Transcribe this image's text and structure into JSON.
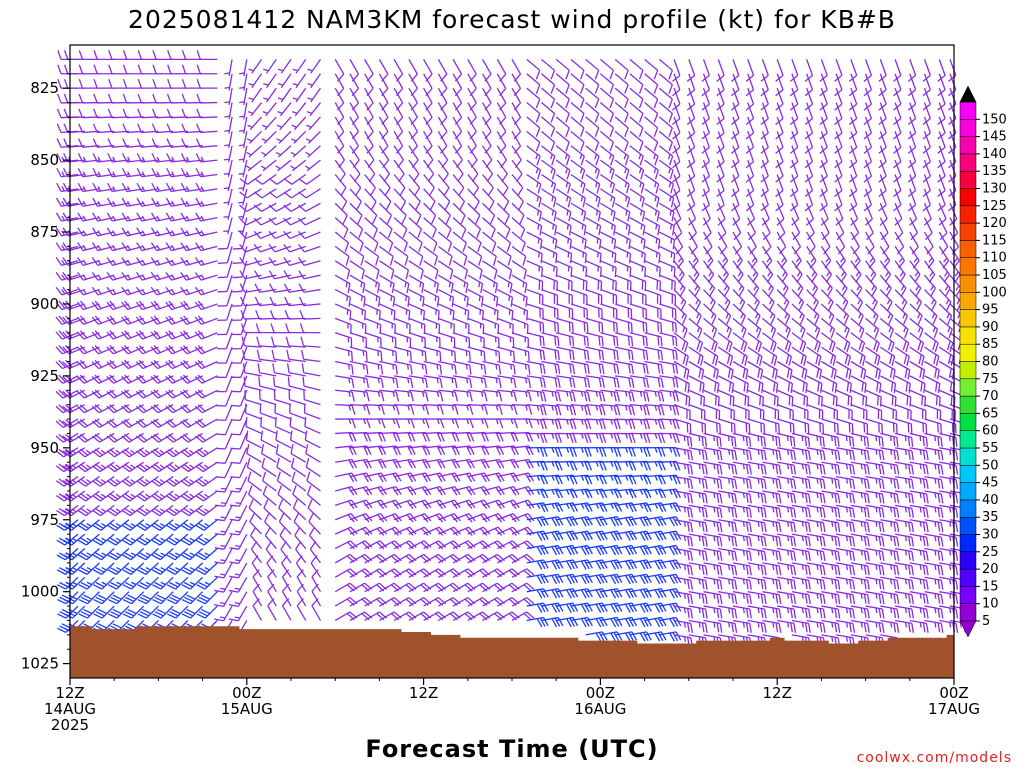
{
  "chart_data": {
    "type": "wind_barb_profile",
    "title": "2025081412 NAM3KM forecast wind profile (kt) for KB#B",
    "xlabel": "Forecast Time (UTC)",
    "ylabel": "",
    "credit": "coolwx.com/models",
    "x_range_hours": [
      0,
      60
    ],
    "x_step_hours": 1,
    "y_range_hPa": [
      810,
      1030
    ],
    "y_ticks": [
      {
        "label": "825",
        "value": 825
      },
      {
        "label": "850",
        "value": 850
      },
      {
        "label": "875",
        "value": 875
      },
      {
        "label": "900",
        "value": 900
      },
      {
        "label": "925",
        "value": 925
      },
      {
        "label": "950",
        "value": 950
      },
      {
        "label": "975",
        "value": 975
      },
      {
        "label": "1000",
        "value": 1000
      },
      {
        "label": "1025",
        "value": 1025
      }
    ],
    "x_ticks": [
      {
        "hour": 0,
        "line1": "12Z",
        "line2": "14AUG",
        "line3": "2025"
      },
      {
        "hour": 12,
        "line1": "00Z",
        "line2": "15AUG",
        "line3": ""
      },
      {
        "hour": 24,
        "line1": "12Z",
        "line2": "",
        "line3": ""
      },
      {
        "hour": 36,
        "line1": "00Z",
        "line2": "16AUG",
        "line3": ""
      },
      {
        "hour": 48,
        "line1": "12Z",
        "line2": "",
        "line3": ""
      },
      {
        "hour": 60,
        "line1": "00Z",
        "line2": "17AUG",
        "line3": ""
      }
    ],
    "levels_hPa": [
      815,
      820,
      825,
      830,
      835,
      840,
      845,
      850,
      855,
      860,
      865,
      870,
      875,
      880,
      885,
      890,
      895,
      900,
      905,
      910,
      915,
      920,
      925,
      930,
      935,
      940,
      945,
      950,
      955,
      960,
      965,
      970,
      975,
      980,
      985,
      990,
      995,
      1000,
      1005,
      1010,
      1015
    ],
    "surface_pressure_by_hour": [
      1012,
      1012,
      1013,
      1013,
      1013,
      1012,
      1012,
      1012,
      1012,
      1012,
      1012,
      1012,
      1013,
      1013,
      1013,
      1013,
      1013,
      1013,
      1013,
      1013,
      1013,
      1013,
      1013,
      1014,
      1014,
      1015,
      1015,
      1016,
      1016,
      1016,
      1016,
      1016,
      1016,
      1016,
      1016,
      1017,
      1017,
      1017,
      1017,
      1018,
      1018,
      1018,
      1018,
      1017,
      1017,
      1017,
      1017,
      1017,
      1016,
      1017,
      1017,
      1017,
      1018,
      1018,
      1017,
      1017,
      1016,
      1016,
      1016,
      1016,
      1015
    ],
    "wind_segments": [
      {
        "hours": [
          0,
          10
        ],
        "p_max": 1015,
        "upper": {
          "p": 825,
          "dir": 270,
          "spd": 10
        },
        "lower": {
          "p": 1000,
          "dir": 225,
          "spd": 28
        }
      },
      {
        "hours": [
          11,
          12
        ],
        "p_max": 1015,
        "upper": {
          "p": 830,
          "dir": 190,
          "spd": 5
        },
        "lower": {
          "p": 1000,
          "dir": 210,
          "spd": 15
        }
      },
      {
        "hours": [
          13,
          17
        ],
        "p_max": 1015,
        "upper": {
          "p": 825,
          "dir": 215,
          "spd": 7
        },
        "lower": {
          "p": 1000,
          "dir": 330,
          "spd": 10
        }
      },
      {
        "hours": [
          18,
          30
        ],
        "p_max": 1015,
        "upper": {
          "p": 840,
          "dir": 150,
          "spd": 8
        },
        "lower": {
          "p": 990,
          "dir": 60,
          "spd": 22
        }
      },
      {
        "hours": [
          31,
          40
        ],
        "p_max": 1015,
        "upper": {
          "p": 840,
          "dir": 130,
          "spd": 12
        },
        "lower": {
          "p": 975,
          "dir": 80,
          "spd": 28
        }
      },
      {
        "hours": [
          41,
          60
        ],
        "p_max": 1015,
        "upper": {
          "p": 860,
          "dir": 160,
          "spd": 10
        },
        "lower": {
          "p": 950,
          "dir": 100,
          "spd": 24
        }
      }
    ],
    "colorbar": {
      "levels": [
        "5",
        "10",
        "15",
        "20",
        "25",
        "30",
        "35",
        "40",
        "45",
        "50",
        "55",
        "60",
        "65",
        "70",
        "75",
        "80",
        "85",
        "90",
        "95",
        "100",
        "105",
        "110",
        "115",
        "120",
        "125",
        "130",
        "135",
        "140",
        "145",
        "150"
      ],
      "colors": [
        "#9400d3",
        "#7a00ff",
        "#5000ff",
        "#2c00ff",
        "#0028ff",
        "#0050ff",
        "#0080ff",
        "#00a8ff",
        "#00c8ff",
        "#00e0d0",
        "#00e890",
        "#00e040",
        "#30e030",
        "#70f030",
        "#c0f000",
        "#f0f000",
        "#f8e000",
        "#f8c800",
        "#f8a800",
        "#f89000",
        "#f87800",
        "#f86000",
        "#f84000",
        "#f82000",
        "#f80000",
        "#f80040",
        "#f80080",
        "#f800b0",
        "#f800e0",
        "#f800f8"
      ],
      "over_color": "#000000",
      "under_color": "#9400d3"
    },
    "colors": {
      "surface": "#a0522d",
      "barb_light": "#8a2be2",
      "barb_strong": "#1a3cff",
      "credit": "#e02020"
    }
  }
}
